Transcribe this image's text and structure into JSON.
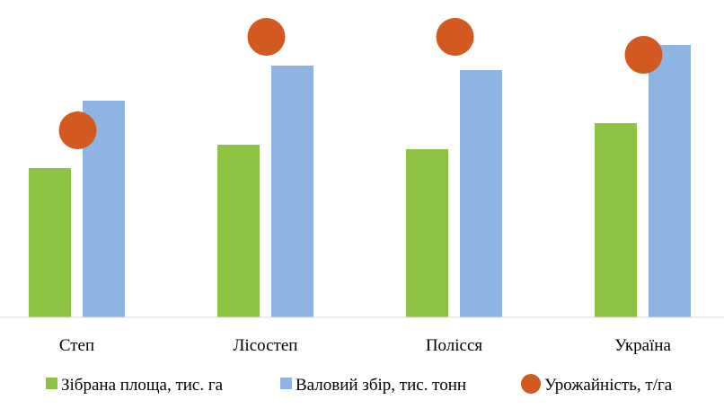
{
  "chart_data": {
    "type": "bar",
    "title": "",
    "xlabel": "",
    "ylabel": "",
    "grid": false,
    "legend_position": "bottom",
    "ylim": [
      0,
      300
    ],
    "categories": [
      "Степ",
      "Лісостеп",
      "Полісся",
      "Україна"
    ],
    "series": [
      {
        "name": "Зібрана площа, тис. га",
        "kind": "bar",
        "color": "#8DC243",
        "values": [
          166,
          192,
          187,
          216
        ]
      },
      {
        "name": "Валовий збір, тис. тонн",
        "kind": "bar",
        "color": "#8DB4E2",
        "values": [
          241,
          280,
          275,
          303
        ]
      },
      {
        "name": "Урожайність, т/га",
        "kind": "marker",
        "color": "#D2591F",
        "values": [
          208,
          312,
          312,
          292
        ]
      }
    ]
  }
}
